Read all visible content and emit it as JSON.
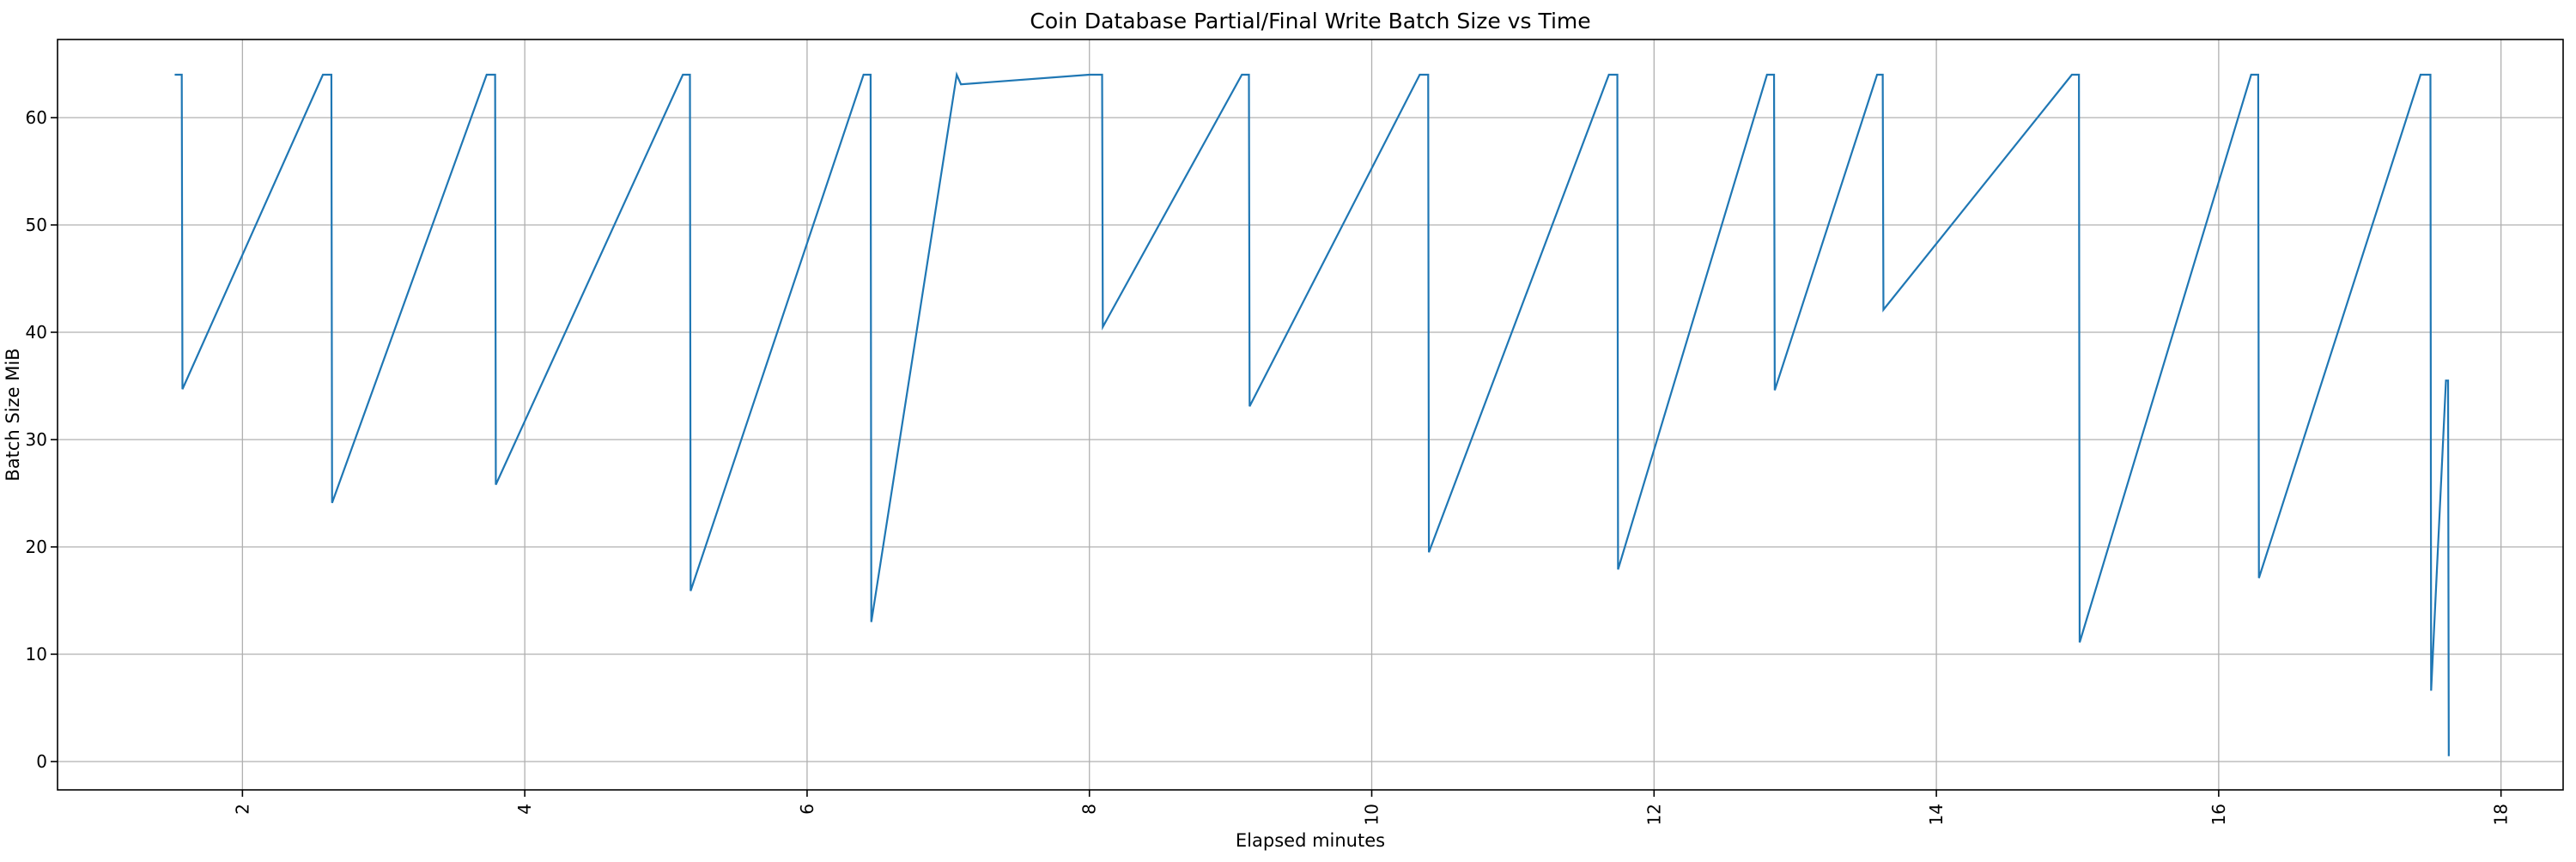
{
  "figure": {
    "background": "#ffffff"
  },
  "chart_data": {
    "type": "line",
    "title": "Coin Database Partial/Final Write Batch Size vs Time",
    "xlabel": "Elapsed minutes",
    "ylabel": "Batch Size MiB",
    "xlim": [
      0.69,
      18.44
    ],
    "ylim": [
      -2.64,
      67.28
    ],
    "xticks": [
      2,
      4,
      6,
      8,
      10,
      12,
      14,
      16,
      18
    ],
    "yticks": [
      0,
      10,
      20,
      30,
      40,
      50,
      60
    ],
    "x_tick_rotation_deg": 90,
    "grid": true,
    "legend_position": "none",
    "line_color": "#1f77b4",
    "grid_color": "#b0b0b0",
    "spine_color": "#000000",
    "series": [
      {
        "name": "batch_size_mib",
        "points": [
          [
            1.52,
            64
          ],
          [
            1.57,
            64
          ],
          [
            1.575,
            34.7
          ],
          [
            2.57,
            64
          ],
          [
            2.63,
            64
          ],
          [
            2.635,
            24.1
          ],
          [
            3.73,
            64
          ],
          [
            3.79,
            64
          ],
          [
            3.795,
            25.8
          ],
          [
            5.12,
            64
          ],
          [
            5.17,
            64
          ],
          [
            5.175,
            15.9
          ],
          [
            6.4,
            64
          ],
          [
            6.45,
            64
          ],
          [
            6.455,
            13.0
          ],
          [
            7.06,
            64
          ],
          [
            7.09,
            63.1
          ],
          [
            8.0,
            64
          ],
          [
            8.09,
            64
          ],
          [
            8.095,
            40.5
          ],
          [
            9.08,
            64
          ],
          [
            9.13,
            64
          ],
          [
            9.135,
            33.1
          ],
          [
            10.34,
            64
          ],
          [
            10.4,
            64
          ],
          [
            10.405,
            19.5
          ],
          [
            11.68,
            64
          ],
          [
            11.74,
            64
          ],
          [
            11.745,
            17.9
          ],
          [
            12.8,
            64
          ],
          [
            12.85,
            64
          ],
          [
            12.855,
            34.6
          ],
          [
            13.58,
            64
          ],
          [
            13.62,
            64
          ],
          [
            13.625,
            42.1
          ],
          [
            14.96,
            64
          ],
          [
            15.01,
            64
          ],
          [
            15.015,
            11.1
          ],
          [
            16.23,
            64
          ],
          [
            16.28,
            64
          ],
          [
            16.285,
            17.1
          ],
          [
            17.43,
            64
          ],
          [
            17.5,
            64
          ],
          [
            17.505,
            6.6
          ],
          [
            17.61,
            35.5
          ],
          [
            17.625,
            35.5
          ],
          [
            17.63,
            0.5
          ]
        ]
      }
    ]
  }
}
